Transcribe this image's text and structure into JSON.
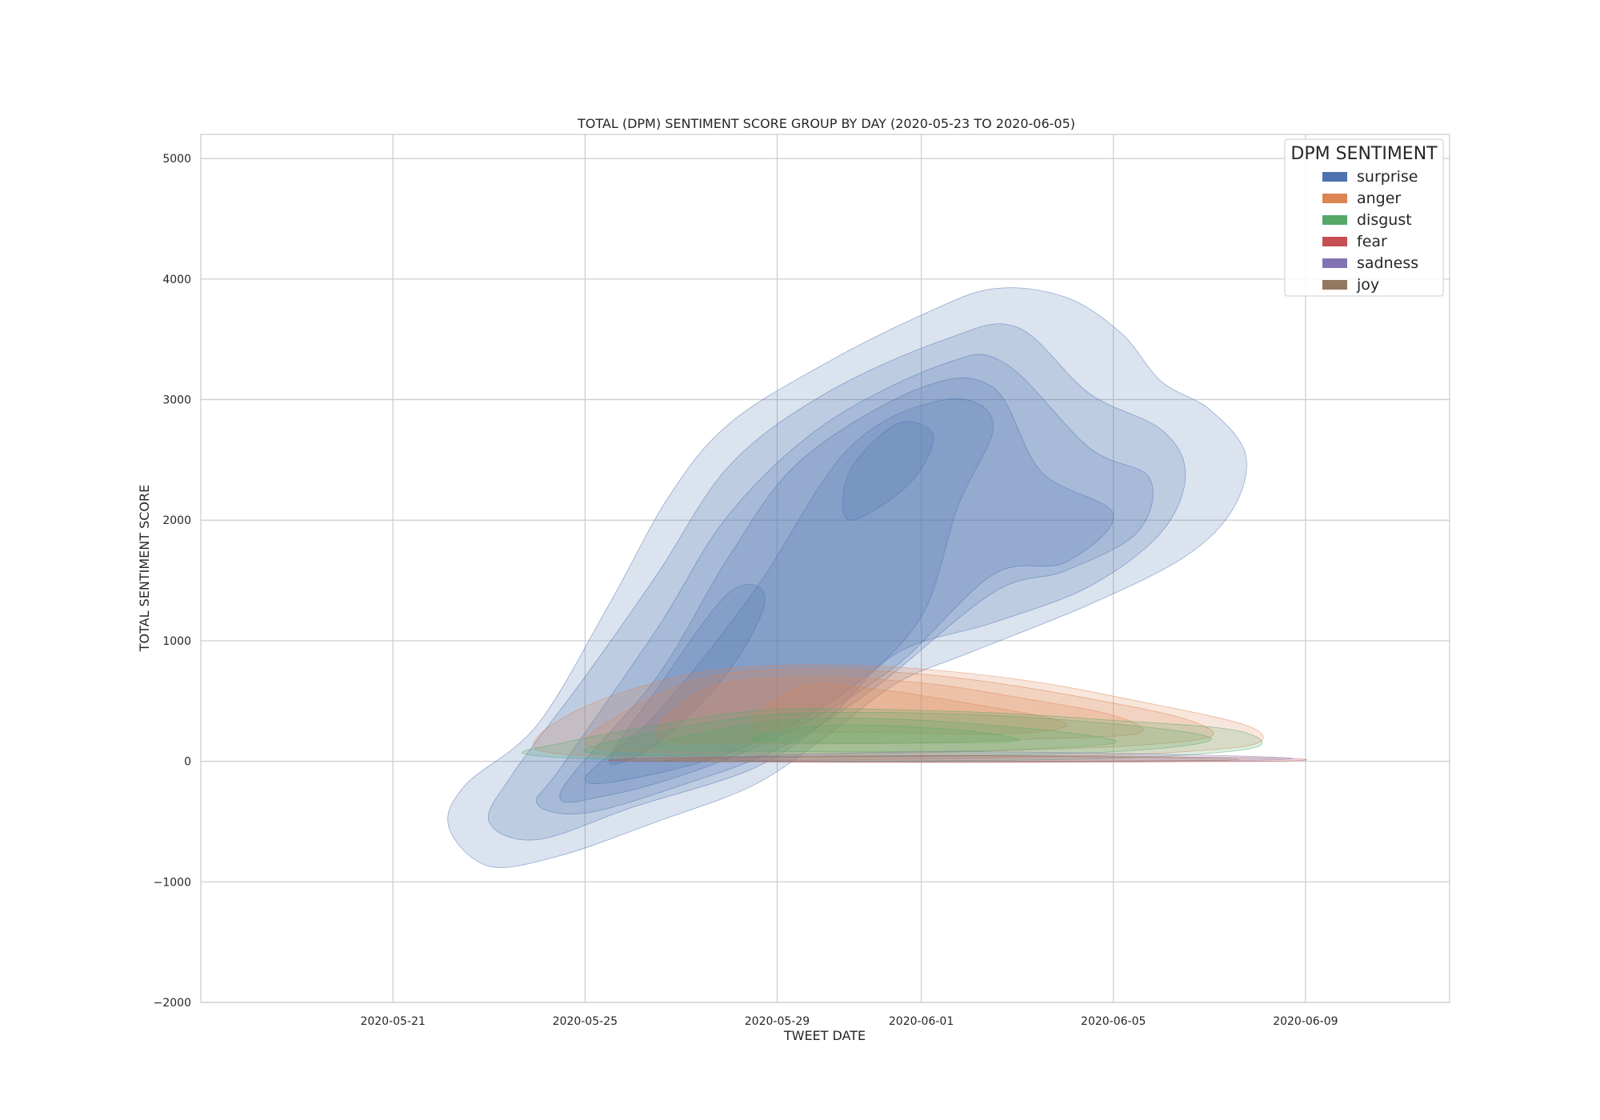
{
  "chart_data": {
    "type": "area",
    "subtype": "kde-density-contours",
    "title": "TOTAL (DPM) SENTIMENT SCORE GROUP BY DAY (2020-05-23 TO 2020-06-05)",
    "xlabel": "TWEET DATE",
    "ylabel": "TOTAL SENTIMENT SCORE",
    "xlim": [
      "2020-05-17",
      "2020-06-12"
    ],
    "ylim": [
      -2000,
      5200
    ],
    "x_ticks": [
      "2020-05-21",
      "2020-05-25",
      "2020-05-29",
      "2020-06-01",
      "2020-06-05",
      "2020-06-09"
    ],
    "y_ticks": [
      5000,
      4000,
      3000,
      2000,
      1000,
      0,
      -1000,
      -2000
    ],
    "y_tick_labels": [
      "5000",
      "4000",
      "3000",
      "2000",
      "1000",
      "0",
      "−1000",
      "−2000"
    ],
    "grid": true,
    "legend_title": "DPM SENTIMENT",
    "legend_position": "top-right",
    "series": [
      {
        "name": "surprise",
        "color": "#4c72b0",
        "contours": [
          [
            [
              "2020-05-22T04:00",
              -550
            ],
            [
              "2020-05-23T00:00",
              -870
            ],
            [
              "2020-05-24T12:00",
              -780
            ],
            [
              "2020-05-26T12:00",
              -500
            ],
            [
              "2020-05-28T12:00",
              -200
            ],
            [
              "2020-05-30T00:00",
              200
            ],
            [
              "2020-05-31T12:00",
              650
            ],
            [
              "2020-06-02T00:00",
              900
            ],
            [
              "2020-06-04T12:00",
              1300
            ],
            [
              "2020-06-06T12:00",
              1700
            ],
            [
              "2020-06-07T12:00",
              2100
            ],
            [
              "2020-06-07T18:00",
              2550
            ],
            [
              "2020-06-07T00:00",
              2920
            ],
            [
              "2020-06-06T00:00",
              3150
            ],
            [
              "2020-06-05T04:00",
              3550
            ],
            [
              "2020-06-04T00:00",
              3850
            ],
            [
              "2020-06-02T12:00",
              3920
            ],
            [
              "2020-06-01T00:00",
              3700
            ],
            [
              "2020-05-30T00:00",
              3300
            ],
            [
              "2020-05-28T00:00",
              2800
            ],
            [
              "2020-05-26T18:00",
              2200
            ],
            [
              "2020-05-25T12:00",
              1300
            ],
            [
              "2020-05-24T00:00",
              300
            ],
            [
              "2020-05-22T12:00",
              -200
            ]
          ],
          [
            [
              "2020-05-23T00:00",
              -500
            ],
            [
              "2020-05-24T00:00",
              -650
            ],
            [
              "2020-05-26T00:00",
              -380
            ],
            [
              "2020-05-28T12:00",
              -60
            ],
            [
              "2020-05-30T00:00",
              330
            ],
            [
              "2020-05-31T12:00",
              900
            ],
            [
              "2020-06-02T12:00",
              1150
            ],
            [
              "2020-06-04T12:00",
              1450
            ],
            [
              "2020-06-06T00:00",
              1900
            ],
            [
              "2020-06-06T12:00",
              2380
            ],
            [
              "2020-06-06T00:00",
              2750
            ],
            [
              "2020-06-04T12:00",
              3050
            ],
            [
              "2020-06-03T00:00",
              3600
            ],
            [
              "2020-06-01T12:00",
              3500
            ],
            [
              "2020-05-30T00:00",
              3050
            ],
            [
              "2020-05-28T00:00",
              2450
            ],
            [
              "2020-05-26T12:00",
              1550
            ],
            [
              "2020-05-25T00:00",
              700
            ],
            [
              "2020-05-23T12:00",
              -100
            ]
          ],
          [
            [
              "2020-05-24T00:00",
              -350
            ],
            [
              "2020-05-25T00:00",
              -430
            ],
            [
              "2020-05-27T00:00",
              -200
            ],
            [
              "2020-05-29T00:00",
              100
            ],
            [
              "2020-05-31T00:00",
              600
            ],
            [
              "2020-06-02T12:00",
              1400
            ],
            [
              "2020-06-04T00:00",
              1580
            ],
            [
              "2020-06-05T12:00",
              1900
            ],
            [
              "2020-06-05T18:00",
              2350
            ],
            [
              "2020-06-04T12:00",
              2600
            ],
            [
              "2020-06-02T18:00",
              3300
            ],
            [
              "2020-06-01T12:00",
              3300
            ],
            [
              "2020-05-30T00:00",
              2800
            ],
            [
              "2020-05-28T00:00",
              2050
            ],
            [
              "2020-05-26T12:00",
              1100
            ],
            [
              "2020-05-24T12:00",
              -50
            ]
          ],
          [
            [
              "2020-05-24T12:00",
              -250
            ],
            [
              "2020-05-25T12:00",
              -280
            ],
            [
              "2020-05-27T12:00",
              -50
            ],
            [
              "2020-05-29T12:00",
              300
            ],
            [
              "2020-05-31T12:00",
              800
            ],
            [
              "2020-06-02T12:00",
              1550
            ],
            [
              "2020-06-04T00:00",
              1650
            ],
            [
              "2020-06-05T00:00",
              2050
            ],
            [
              "2020-06-03T12:00",
              2400
            ],
            [
              "2020-06-02T12:00",
              3100
            ],
            [
              "2020-06-01T00:00",
              3100
            ],
            [
              "2020-05-29T12:00",
              2500
            ],
            [
              "2020-05-28T00:00",
              1700
            ],
            [
              "2020-05-26T12:00",
              700
            ]
          ],
          [
            [
              "2020-05-25T00:00",
              -150
            ],
            [
              "2020-05-26T12:00",
              -100
            ],
            [
              "2020-05-28T12:00",
              150
            ],
            [
              "2020-05-30T12:00",
              600
            ],
            [
              "2020-06-01T00:00",
              1200
            ],
            [
              "2020-06-01T18:00",
              2100
            ],
            [
              "2020-06-02T12:00",
              2800
            ],
            [
              "2020-06-01T12:00",
              3000
            ],
            [
              "2020-05-30T12:00",
              2600
            ],
            [
              "2020-05-28T12:00",
              1400
            ],
            [
              "2020-05-26T12:00",
              400
            ]
          ],
          [
            [
              "2020-05-30T12:00",
              2000
            ],
            [
              "2020-05-31T18:00",
              2300
            ],
            [
              "2020-06-01T06:00",
              2700
            ],
            [
              "2020-05-31T12:00",
              2800
            ],
            [
              "2020-05-30T12:00",
              2400
            ]
          ],
          [
            [
              "2020-05-25T12:00",
              0
            ],
            [
              "2020-05-26T12:00",
              150
            ],
            [
              "2020-05-28T00:00",
              750
            ],
            [
              "2020-05-28T18:00",
              1350
            ],
            [
              "2020-05-28T00:00",
              1400
            ],
            [
              "2020-05-26T12:00",
              600
            ]
          ]
        ]
      },
      {
        "name": "anger",
        "color": "#dd8452",
        "contours": [
          [
            [
              "2020-05-24T00:00",
              100
            ],
            [
              "2020-05-26T00:00",
              30
            ],
            [
              "2020-05-29T00:00",
              10
            ],
            [
              "2020-06-01T00:00",
              20
            ],
            [
              "2020-06-04T00:00",
              40
            ],
            [
              "2020-06-06T12:00",
              80
            ],
            [
              "2020-06-08T00:00",
              150
            ],
            [
              "2020-06-07T18:00",
              300
            ],
            [
              "2020-06-05T12:00",
              500
            ],
            [
              "2020-06-03T00:00",
              680
            ],
            [
              "2020-05-31T00:00",
              790
            ],
            [
              "2020-05-28T00:00",
              770
            ],
            [
              "2020-05-26T00:00",
              600
            ],
            [
              "2020-05-24T12:00",
              350
            ]
          ],
          [
            [
              "2020-05-25T00:00",
              150
            ],
            [
              "2020-05-27T00:00",
              70
            ],
            [
              "2020-05-30T00:00",
              60
            ],
            [
              "2020-06-02T00:00",
              80
            ],
            [
              "2020-06-05T00:00",
              120
            ],
            [
              "2020-06-07T00:00",
              200
            ],
            [
              "2020-06-06T12:00",
              350
            ],
            [
              "2020-06-04T12:00",
              520
            ],
            [
              "2020-06-02T00:00",
              680
            ],
            [
              "2020-05-30T12:00",
              760
            ],
            [
              "2020-05-28T00:00",
              730
            ],
            [
              "2020-05-26T12:00",
              550
            ]
          ],
          [
            [
              "2020-05-26T12:00",
              200
            ],
            [
              "2020-05-28T12:00",
              150
            ],
            [
              "2020-05-31T12:00",
              150
            ],
            [
              "2020-06-03T00:00",
              180
            ],
            [
              "2020-06-05T12:00",
              230
            ],
            [
              "2020-06-05T00:00",
              380
            ],
            [
              "2020-06-03T00:00",
              530
            ],
            [
              "2020-06-01T00:00",
              650
            ],
            [
              "2020-05-29T12:00",
              700
            ],
            [
              "2020-05-27T12:00",
              600
            ]
          ],
          [
            [
              "2020-05-28T12:00",
              280
            ],
            [
              "2020-05-31T00:00",
              240
            ],
            [
              "2020-06-03T00:00",
              230
            ],
            [
              "2020-06-04T00:00",
              320
            ],
            [
              "2020-06-02T00:00",
              480
            ],
            [
              "2020-05-31T00:00",
              600
            ],
            [
              "2020-05-29T12:00",
              620
            ]
          ]
        ]
      },
      {
        "name": "disgust",
        "color": "#55a868",
        "contours": [
          [
            [
              "2020-05-23T18:00",
              60
            ],
            [
              "2020-05-26T00:00",
              10
            ],
            [
              "2020-05-30T00:00",
              0
            ],
            [
              "2020-06-03T00:00",
              10
            ],
            [
              "2020-06-06T00:00",
              40
            ],
            [
              "2020-06-08T00:00",
              120
            ],
            [
              "2020-06-07T12:00",
              260
            ],
            [
              "2020-06-05T00:00",
              340
            ],
            [
              "2020-06-02T00:00",
              410
            ],
            [
              "2020-05-29T00:00",
              430
            ],
            [
              "2020-05-26T12:00",
              300
            ],
            [
              "2020-05-24T12:00",
              150
            ]
          ],
          [
            [
              "2020-05-25T00:00",
              80
            ],
            [
              "2020-05-28T00:00",
              40
            ],
            [
              "2020-06-01T00:00",
              40
            ],
            [
              "2020-06-05T00:00",
              80
            ],
            [
              "2020-06-07T00:00",
              170
            ],
            [
              "2020-06-06T00:00",
              270
            ],
            [
              "2020-06-02T12:00",
              380
            ],
            [
              "2020-05-29T12:00",
              400
            ],
            [
              "2020-05-27T00:00",
              280
            ]
          ],
          [
            [
              "2020-05-26T12:00",
              110
            ],
            [
              "2020-05-29T12:00",
              80
            ],
            [
              "2020-06-02T12:00",
              90
            ],
            [
              "2020-06-05T00:00",
              150
            ],
            [
              "2020-06-04T00:00",
              240
            ],
            [
              "2020-06-01T00:00",
              340
            ],
            [
              "2020-05-29T12:00",
              350
            ],
            [
              "2020-05-27T12:00",
              240
            ]
          ],
          [
            [
              "2020-05-28T12:00",
              170
            ],
            [
              "2020-05-31T12:00",
              150
            ],
            [
              "2020-06-03T00:00",
              170
            ],
            [
              "2020-06-02T00:00",
              250
            ],
            [
              "2020-05-31T00:00",
              300
            ],
            [
              "2020-05-29T12:00",
              280
            ]
          ]
        ]
      },
      {
        "name": "fear",
        "color": "#c44e52",
        "contours": [
          [
            [
              "2020-05-26T00:00",
              0
            ],
            [
              "2020-06-01T00:00",
              -10
            ],
            [
              "2020-06-08T06:00",
              0
            ],
            [
              "2020-06-08T00:00",
              30
            ],
            [
              "2020-06-01T00:00",
              50
            ],
            [
              "2020-05-26T12:00",
              25
            ]
          ]
        ]
      },
      {
        "name": "sadness",
        "color": "#8172b3",
        "contours": [
          [
            [
              "2020-05-28T00:00",
              10
            ],
            [
              "2020-06-02T00:00",
              0
            ],
            [
              "2020-06-08T00:00",
              10
            ],
            [
              "2020-06-08T00:00",
              40
            ],
            [
              "2020-06-02T00:00",
              80
            ],
            [
              "2020-05-29T00:00",
              50
            ]
          ]
        ]
      },
      {
        "name": "joy",
        "color": "#937860",
        "contours": [
          [
            [
              "2020-05-27T00:00",
              0
            ],
            [
              "2020-06-02T00:00",
              -5
            ],
            [
              "2020-06-07T00:00",
              5
            ],
            [
              "2020-06-07T00:00",
              25
            ],
            [
              "2020-06-02T00:00",
              45
            ],
            [
              "2020-05-28T00:00",
              30
            ]
          ]
        ]
      }
    ]
  }
}
